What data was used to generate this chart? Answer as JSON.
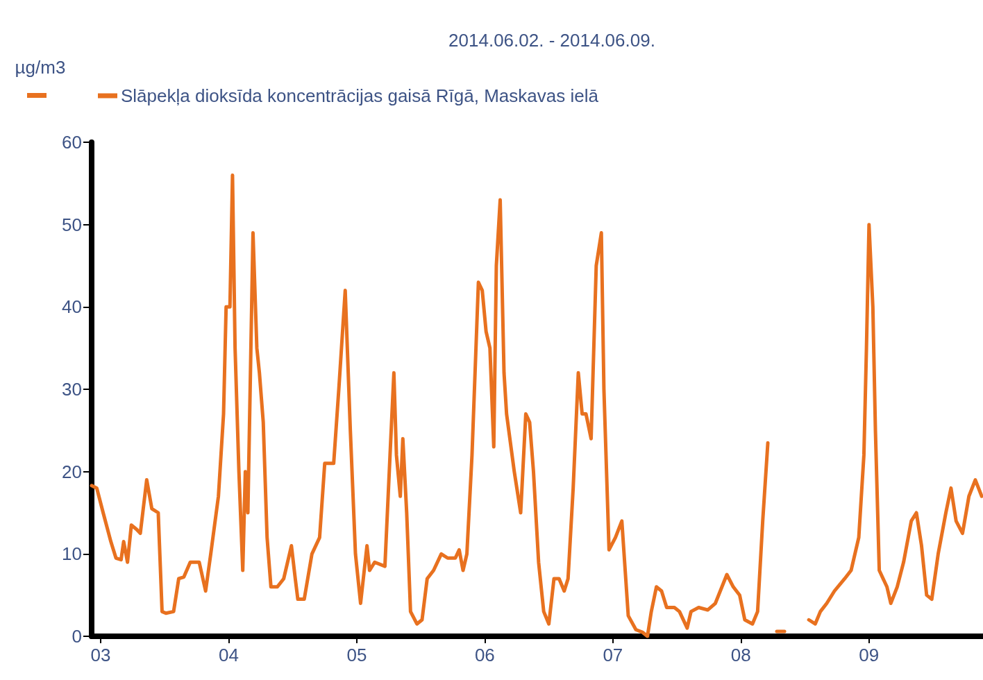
{
  "chart_data": {
    "type": "line",
    "title": "2014.06.02. - 2014.06.09.",
    "ylabel": "µg/m3",
    "xlim": [
      2.93,
      9.89
    ],
    "ylim": [
      0,
      60
    ],
    "xticks": [
      {
        "value": 3,
        "label": "03"
      },
      {
        "value": 4,
        "label": "04"
      },
      {
        "value": 5,
        "label": "05"
      },
      {
        "value": 6,
        "label": "06"
      },
      {
        "value": 7,
        "label": "07"
      },
      {
        "value": 8,
        "label": "08"
      },
      {
        "value": 9,
        "label": "09"
      }
    ],
    "yticks": [
      0,
      10,
      20,
      30,
      40,
      50,
      60
    ],
    "grid": false,
    "legend": "top left",
    "marker": "none",
    "line_style": "solid",
    "series": [
      {
        "name": "Slāpekļa dioksīda koncentrācijas gaisā Rīgā, Maskavas ielā",
        "color": "#e8711f",
        "x": [
          2.93,
          2.97,
          3.02,
          3.08,
          3.12,
          3.16,
          3.18,
          3.21,
          3.24,
          3.28,
          3.31,
          3.36,
          3.4,
          3.45,
          3.48,
          3.51,
          3.57,
          3.61,
          3.65,
          3.7,
          3.77,
          3.82,
          3.86,
          3.92,
          3.96,
          3.98,
          4.01,
          4.03,
          4.05,
          4.08,
          4.11,
          4.13,
          4.15,
          4.19,
          4.22,
          4.24,
          4.27,
          4.3,
          4.33,
          4.38,
          4.43,
          4.49,
          4.52,
          4.54,
          4.59,
          4.65,
          4.71,
          4.75,
          4.82,
          4.86,
          4.91,
          4.95,
          4.99,
          5.03,
          5.08,
          5.1,
          5.14,
          5.22,
          5.26,
          5.29,
          5.31,
          5.34,
          5.36,
          5.39,
          5.42,
          5.47,
          5.51,
          5.55,
          5.6,
          5.66,
          5.71,
          5.77,
          5.8,
          5.83,
          5.86,
          5.9,
          5.95,
          5.98,
          6.01,
          6.04,
          6.07,
          6.09,
          6.12,
          6.15,
          6.17,
          6.23,
          6.28,
          6.32,
          6.35,
          6.38,
          6.42,
          6.46,
          6.5,
          6.54,
          6.58,
          6.62,
          6.65,
          6.69,
          6.73,
          6.76,
          6.79,
          6.83,
          6.87,
          6.91,
          6.93,
          6.97,
          7.02,
          7.07,
          7.12,
          7.18,
          7.23,
          7.27,
          7.3,
          7.34,
          7.38,
          7.42,
          7.48,
          7.52,
          7.58,
          7.61,
          7.67,
          7.74,
          7.8,
          7.89,
          7.94,
          7.99,
          8.03,
          8.09,
          8.13,
          8.17,
          8.21,
          8.24,
          8.28,
          8.34,
          8.4,
          8.53,
          8.58,
          8.62,
          8.67,
          8.73,
          8.81,
          8.86,
          8.92,
          8.96,
          8.98,
          9.0,
          9.03,
          9.05,
          9.08,
          9.14,
          9.17,
          9.22,
          9.27,
          9.33,
          9.37,
          9.41,
          9.45,
          9.49,
          9.54,
          9.6,
          9.64,
          9.68,
          9.73,
          9.78,
          9.83,
          9.88
        ],
        "values": [
          18.3,
          18,
          15,
          11.5,
          9.5,
          9.3,
          11.5,
          9,
          13.5,
          13,
          12.5,
          19,
          15.5,
          15,
          3,
          2.8,
          3,
          7,
          7.2,
          9,
          9,
          5.5,
          10,
          17,
          27,
          40,
          40,
          56,
          35,
          20,
          8,
          20,
          15,
          49,
          35,
          32,
          26,
          12,
          6,
          6,
          7,
          11,
          7,
          4.5,
          4.5,
          10,
          12,
          21,
          21,
          30,
          42,
          25,
          10,
          4,
          11,
          8,
          9,
          8.5,
          22,
          32,
          22,
          17,
          24,
          15,
          3,
          1.5,
          2,
          7,
          8,
          10,
          9.5,
          9.5,
          10.5,
          8,
          10,
          22,
          43,
          42,
          37,
          35,
          23,
          45,
          53,
          32,
          27,
          20,
          15,
          27,
          26,
          20,
          9,
          3,
          1.5,
          7,
          7,
          5.5,
          7,
          18,
          32,
          27,
          27,
          24,
          45,
          49,
          30,
          10.5,
          12,
          14,
          2.5,
          0.8,
          0.5,
          0,
          3,
          6,
          5.5,
          3.5,
          3.5,
          3,
          1,
          3,
          3.5,
          3.2,
          4,
          7.5,
          6,
          5,
          2,
          1.5,
          3,
          14,
          23.5,
          null,
          0.6,
          0.6,
          null,
          2,
          1.5,
          3,
          4,
          5.5,
          7,
          8,
          12,
          22,
          35,
          50,
          40,
          25,
          8,
          6,
          4,
          6,
          9,
          14,
          15,
          11,
          5,
          4.5,
          10,
          15,
          18,
          14,
          12.5,
          17,
          19,
          17
        ]
      }
    ]
  }
}
